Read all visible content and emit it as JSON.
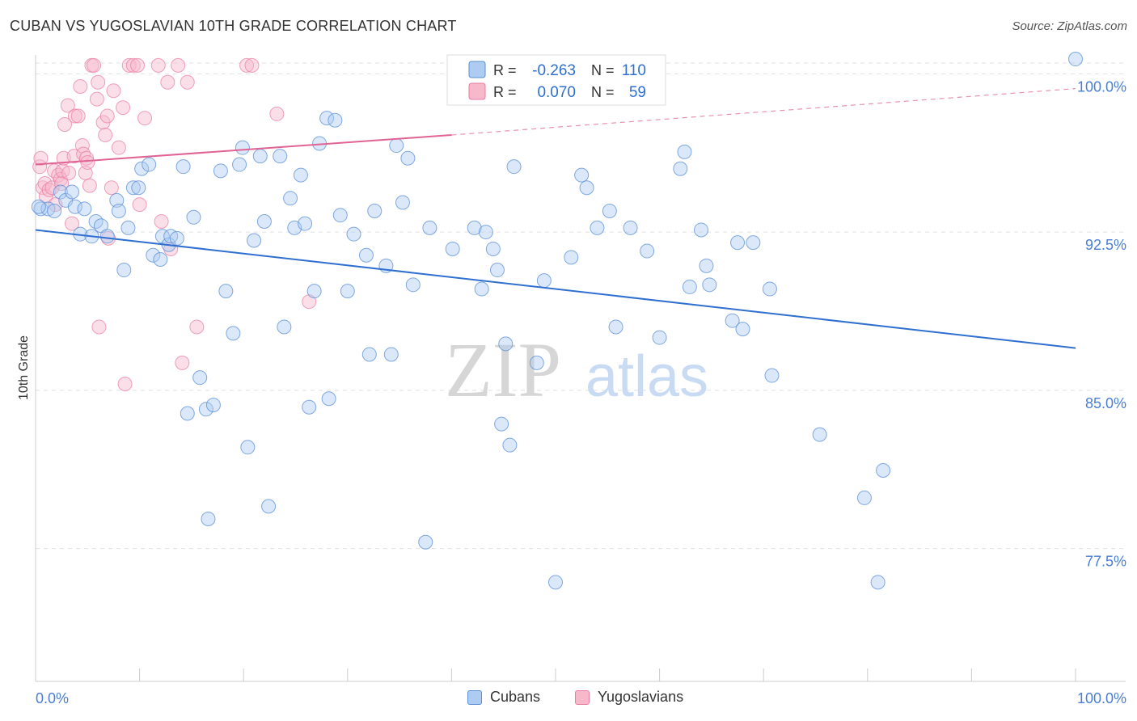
{
  "header": {
    "title": "CUBAN VS YUGOSLAVIAN 10TH GRADE CORRELATION CHART",
    "source": "Source: ZipAtlas.com"
  },
  "watermark": {
    "zip": "ZIP",
    "atlas": "atlas"
  },
  "colors": {
    "cubans": "#5b8fd6",
    "cubans_fill": "#aecbf2",
    "cubans_line": "#2f6fd0",
    "yugoslavians": "#e87ca0",
    "yugoslavians_fill": "#f7b8cb",
    "yugoslavians_line": "#e06393",
    "axis_text": "#4a7fd4",
    "grid": "#e0e0e0"
  },
  "legend_top": {
    "rows": [
      {
        "r_label": "R =",
        "r_value": "-0.263",
        "n_label": "N =",
        "n_value": "110"
      },
      {
        "r_label": "R =",
        "r_value": "0.070",
        "n_label": "N =",
        "n_value": "59"
      }
    ]
  },
  "legend_bottom": {
    "cubans": "Cubans",
    "yugoslavians": "Yugoslavians"
  },
  "chart_data": {
    "type": "scatter",
    "title": "CUBAN VS YUGOSLAVIAN 10TH GRADE CORRELATION CHART",
    "xlabel": "",
    "ylabel": "10th Grade",
    "xlim": [
      0,
      100
    ],
    "ylim": [
      71.2,
      101.2
    ],
    "x_tick_labels": [
      "0.0%",
      "100.0%"
    ],
    "y_ticks": [
      77.5,
      85.0,
      92.5,
      100.0
    ],
    "y_tick_labels": [
      "77.5%",
      "85.0%",
      "92.5%",
      "100.0%"
    ],
    "grid": true,
    "legend_position": "top-center",
    "series": [
      {
        "name": "Cubans",
        "r": -0.263,
        "n": 110,
        "trend": {
          "x": [
            0,
            100
          ],
          "y": [
            92.6,
            87.0
          ]
        },
        "points": [
          [
            0.5,
            93.6
          ],
          [
            1.2,
            93.6
          ],
          [
            1.8,
            93.5
          ],
          [
            2.4,
            94.4
          ],
          [
            2.9,
            94.0
          ],
          [
            3.5,
            94.4
          ],
          [
            3.8,
            93.7
          ],
          [
            4.3,
            92.4
          ],
          [
            4.7,
            93.6
          ],
          [
            5.4,
            92.3
          ],
          [
            5.8,
            93.0
          ],
          [
            6.3,
            92.8
          ],
          [
            6.9,
            92.3
          ],
          [
            7.8,
            94.0
          ],
          [
            8.0,
            93.5
          ],
          [
            8.5,
            90.7
          ],
          [
            8.9,
            92.7
          ],
          [
            9.4,
            94.6
          ],
          [
            9.9,
            94.6
          ],
          [
            10.2,
            95.5
          ],
          [
            10.9,
            95.7
          ],
          [
            11.3,
            91.4
          ],
          [
            12.0,
            91.2
          ],
          [
            12.2,
            92.3
          ],
          [
            12.8,
            91.9
          ],
          [
            13.0,
            92.3
          ],
          [
            13.6,
            92.2
          ],
          [
            14.2,
            95.6
          ],
          [
            14.6,
            83.9
          ],
          [
            15.2,
            93.2
          ],
          [
            15.8,
            85.6
          ],
          [
            16.4,
            84.1
          ],
          [
            16.6,
            78.9
          ],
          [
            17.1,
            84.3
          ],
          [
            17.8,
            95.4
          ],
          [
            18.3,
            89.7
          ],
          [
            19.0,
            87.7
          ],
          [
            19.6,
            95.7
          ],
          [
            19.9,
            96.5
          ],
          [
            20.4,
            82.3
          ],
          [
            21.0,
            92.1
          ],
          [
            21.6,
            96.1
          ],
          [
            22.0,
            93.0
          ],
          [
            22.4,
            79.5
          ],
          [
            23.5,
            96.1
          ],
          [
            23.9,
            88.0
          ],
          [
            24.5,
            94.1
          ],
          [
            24.9,
            92.7
          ],
          [
            25.5,
            95.2
          ],
          [
            25.9,
            92.9
          ],
          [
            26.3,
            84.2
          ],
          [
            26.8,
            89.7
          ],
          [
            27.3,
            96.7
          ],
          [
            28.0,
            97.9
          ],
          [
            28.2,
            84.6
          ],
          [
            28.8,
            97.8
          ],
          [
            29.3,
            93.3
          ],
          [
            30.0,
            89.7
          ],
          [
            30.6,
            92.4
          ],
          [
            31.8,
            91.4
          ],
          [
            32.1,
            86.7
          ],
          [
            32.6,
            93.5
          ],
          [
            33.7,
            90.9
          ],
          [
            34.2,
            86.7
          ],
          [
            34.7,
            96.6
          ],
          [
            35.3,
            93.9
          ],
          [
            35.8,
            96.0
          ],
          [
            36.3,
            90.0
          ],
          [
            37.5,
            77.8
          ],
          [
            37.9,
            92.7
          ],
          [
            40.1,
            91.7
          ],
          [
            42.2,
            92.7
          ],
          [
            42.9,
            89.8
          ],
          [
            43.3,
            92.5
          ],
          [
            44.0,
            91.7
          ],
          [
            44.4,
            90.7
          ],
          [
            44.8,
            83.4
          ],
          [
            45.2,
            87.2
          ],
          [
            45.6,
            82.4
          ],
          [
            46.0,
            95.6
          ],
          [
            48.2,
            86.3
          ],
          [
            48.9,
            90.2
          ],
          [
            50.0,
            75.9
          ],
          [
            51.5,
            91.3
          ],
          [
            52.5,
            95.2
          ],
          [
            53.0,
            94.6
          ],
          [
            54.0,
            92.7
          ],
          [
            55.2,
            93.5
          ],
          [
            55.8,
            88.0
          ],
          [
            57.2,
            92.7
          ],
          [
            58.8,
            91.6
          ],
          [
            60.0,
            87.5
          ],
          [
            62.0,
            95.5
          ],
          [
            62.4,
            96.3
          ],
          [
            62.9,
            89.9
          ],
          [
            64.0,
            92.6
          ],
          [
            64.5,
            90.9
          ],
          [
            64.8,
            90.0
          ],
          [
            67.0,
            88.3
          ],
          [
            67.5,
            92.0
          ],
          [
            68.0,
            87.9
          ],
          [
            69.0,
            92.0
          ],
          [
            70.6,
            89.8
          ],
          [
            70.8,
            85.7
          ],
          [
            75.4,
            82.9
          ],
          [
            79.7,
            79.9
          ],
          [
            81.5,
            81.2
          ],
          [
            81.0,
            75.9
          ],
          [
            100.0,
            100.7
          ],
          [
            0.3,
            93.7
          ]
        ]
      },
      {
        "name": "Yugoslavians",
        "r": 0.07,
        "n": 59,
        "trend": {
          "x": [
            0,
            40,
            100
          ],
          "y": [
            95.7,
            97.1,
            99.3
          ]
        },
        "points": [
          [
            0.4,
            95.6
          ],
          [
            0.5,
            96.0
          ],
          [
            0.7,
            94.6
          ],
          [
            0.9,
            94.8
          ],
          [
            1.0,
            94.2
          ],
          [
            1.3,
            94.5
          ],
          [
            1.6,
            94.6
          ],
          [
            1.8,
            95.4
          ],
          [
            1.9,
            93.8
          ],
          [
            2.2,
            95.2
          ],
          [
            2.4,
            95.0
          ],
          [
            2.5,
            94.8
          ],
          [
            2.6,
            95.4
          ],
          [
            2.7,
            96.0
          ],
          [
            2.8,
            97.6
          ],
          [
            3.1,
            98.5
          ],
          [
            3.2,
            95.3
          ],
          [
            3.5,
            92.9
          ],
          [
            3.7,
            96.1
          ],
          [
            3.8,
            98.0
          ],
          [
            4.1,
            98.0
          ],
          [
            4.3,
            99.4
          ],
          [
            4.5,
            96.6
          ],
          [
            4.6,
            96.2
          ],
          [
            4.8,
            95.3
          ],
          [
            4.9,
            96.0
          ],
          [
            5.0,
            95.8
          ],
          [
            5.2,
            94.7
          ],
          [
            5.4,
            100.4
          ],
          [
            5.6,
            100.4
          ],
          [
            5.9,
            98.8
          ],
          [
            6.0,
            99.6
          ],
          [
            6.1,
            88.0
          ],
          [
            6.5,
            97.7
          ],
          [
            6.7,
            97.1
          ],
          [
            6.9,
            98.0
          ],
          [
            7.0,
            92.2
          ],
          [
            7.3,
            94.6
          ],
          [
            7.5,
            99.2
          ],
          [
            8.0,
            96.5
          ],
          [
            8.4,
            98.4
          ],
          [
            8.6,
            85.3
          ],
          [
            9.0,
            100.4
          ],
          [
            9.4,
            100.4
          ],
          [
            9.8,
            100.4
          ],
          [
            10.0,
            93.8
          ],
          [
            10.5,
            97.9
          ],
          [
            11.8,
            100.4
          ],
          [
            12.1,
            93.0
          ],
          [
            12.7,
            99.6
          ],
          [
            13.0,
            91.7
          ],
          [
            13.7,
            100.4
          ],
          [
            14.1,
            86.3
          ],
          [
            14.6,
            99.6
          ],
          [
            15.5,
            88.0
          ],
          [
            20.3,
            100.4
          ],
          [
            20.8,
            100.4
          ],
          [
            23.2,
            98.1
          ],
          [
            26.3,
            89.2
          ]
        ]
      }
    ]
  }
}
